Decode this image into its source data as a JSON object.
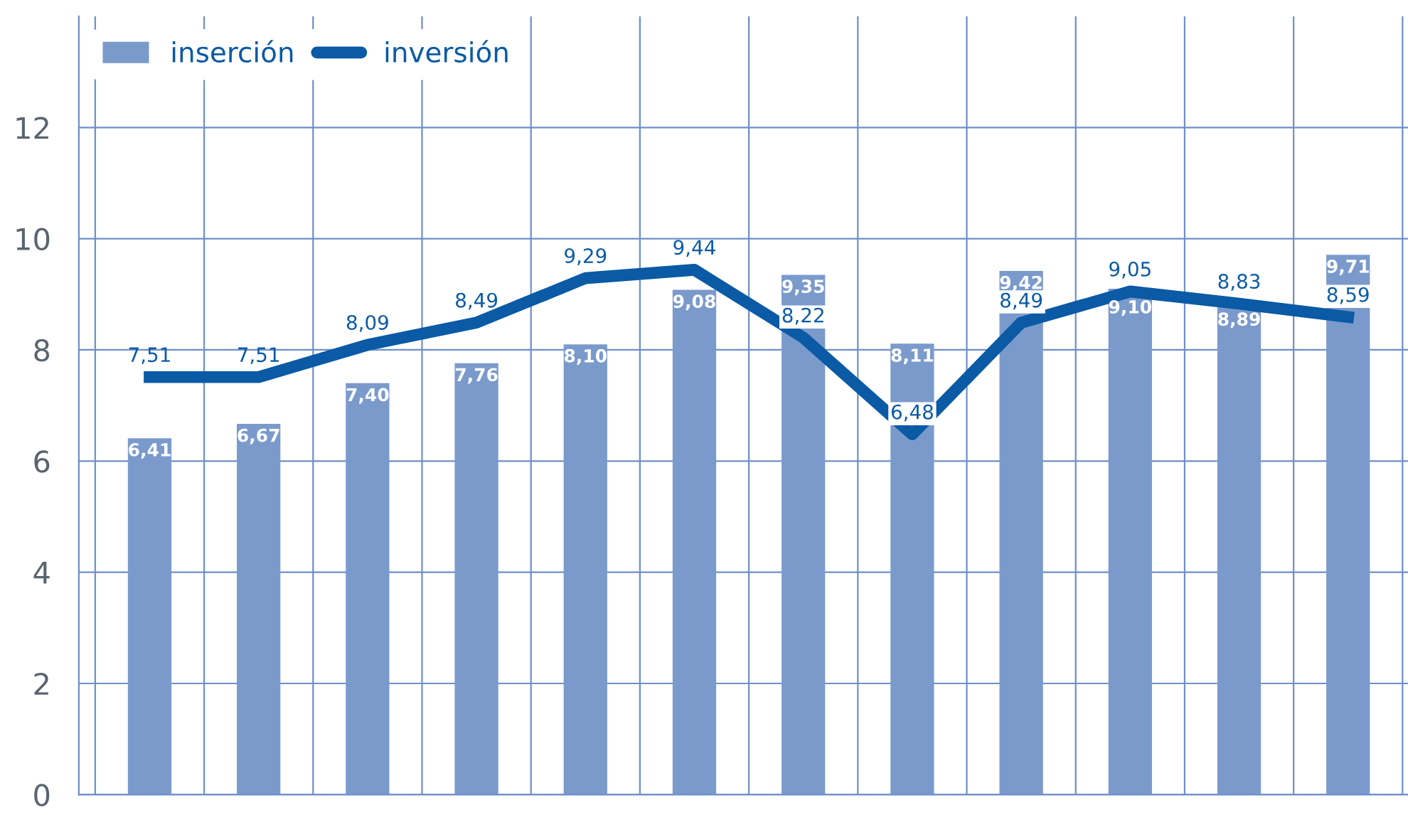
{
  "chart_data": {
    "type": "bar",
    "categories": [
      null,
      null,
      null,
      null,
      null,
      null,
      null,
      null,
      null,
      null,
      null,
      null
    ],
    "series": [
      {
        "name": "inserción",
        "color": "#7b9acc",
        "values": [
          6.41,
          6.67,
          7.4,
          7.76,
          8.1,
          9.08,
          9.35,
          8.11,
          9.42,
          9.1,
          8.89,
          9.71
        ],
        "value_labels": [
          "6,41",
          "6,67",
          "7,40",
          "7,76",
          "8,10",
          "9,08",
          "9,35",
          "8,11",
          "9,42",
          "9,10",
          "8,89",
          "9,71"
        ]
      },
      {
        "name": "inversión",
        "type": "line",
        "color": "#0a5aa5",
        "values": [
          7.51,
          7.51,
          8.09,
          8.49,
          9.29,
          9.44,
          8.22,
          6.48,
          8.49,
          9.05,
          8.83,
          8.59
        ],
        "value_labels": [
          "7,51",
          "7,51",
          "8,09",
          "8,49",
          "9,29",
          "9,44",
          "8,22",
          "6,48",
          "8,49",
          "9,05",
          "8,83",
          "8,59"
        ]
      }
    ],
    "ylim": [
      0,
      14
    ],
    "yticks": [
      0,
      2,
      4,
      6,
      8,
      10,
      12
    ],
    "grid": true,
    "legend": "top left",
    "tick_labels": "y",
    "marker": "none",
    "line_style": "solid"
  }
}
